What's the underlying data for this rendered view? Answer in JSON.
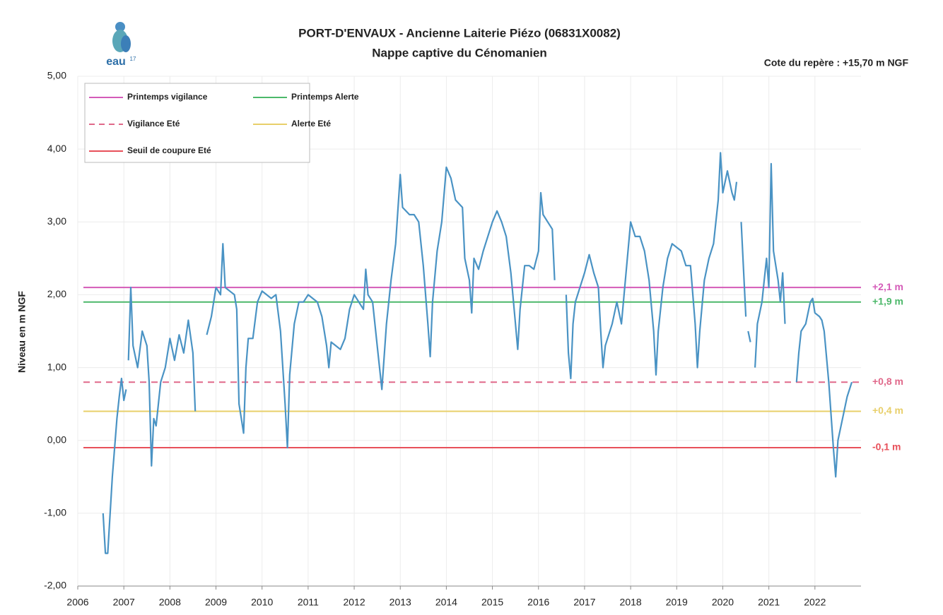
{
  "chart_data": {
    "type": "line",
    "title": "PORT-D'ENVAUX - Ancienne Laiterie Piézo (06831X0082)",
    "subtitle": "Nappe captive du Cénomanien",
    "annotation": "Cote du repère : +15,70 m NGF",
    "logo": {
      "text": "eau",
      "sup": "17"
    },
    "y_label": "Niveau en m NGF",
    "color": "#4a93c4",
    "grid": true,
    "legend": "top-left",
    "xlim": [
      2006,
      2023
    ],
    "xticks": [
      2006,
      2007,
      2008,
      2009,
      2010,
      2011,
      2012,
      2013,
      2014,
      2015,
      2016,
      2017,
      2018,
      2019,
      2020,
      2021,
      2022
    ],
    "ylim": [
      -2,
      5
    ],
    "yticks": [
      {
        "value": -2,
        "label": "-2,00"
      },
      {
        "value": -1,
        "label": "-1,00"
      },
      {
        "value": 0,
        "label": "0,00"
      },
      {
        "value": 1,
        "label": "1,00"
      },
      {
        "value": 2,
        "label": "2,00"
      },
      {
        "value": 3,
        "label": "3,00"
      },
      {
        "value": 4,
        "label": "4,00"
      },
      {
        "value": 5,
        "label": "5,00"
      }
    ],
    "thresholds": [
      {
        "name": "Printemps vigilance",
        "color": "#d45bb8",
        "dashed": false,
        "value": 2.1,
        "label": "+2,1 m"
      },
      {
        "name": "Printemps Alerte",
        "color": "#4cb86a",
        "dashed": false,
        "value": 1.9,
        "label": "+1,9 m"
      },
      {
        "name": "Vigilance Eté",
        "color": "#e0688a",
        "dashed": true,
        "value": 0.8,
        "label": "+0,8 m"
      },
      {
        "name": "Alerte Eté",
        "color": "#e8cf6a",
        "dashed": false,
        "value": 0.4,
        "label": "+0,4 m"
      },
      {
        "name": "Seuil de coupure Eté",
        "color": "#e8505a",
        "dashed": false,
        "value": -0.1,
        "label": "-0,1 m"
      }
    ],
    "x": [
      2006.55,
      2006.6,
      2006.65,
      2006.75,
      2006.85,
      2006.9,
      2006.95,
      2007.0,
      2007.05,
      null,
      2007.1,
      2007.15,
      2007.2,
      2007.3,
      2007.4,
      2007.5,
      2007.55,
      2007.6,
      2007.65,
      2007.7,
      2007.8,
      2007.9,
      2008.0,
      2008.1,
      2008.2,
      2008.3,
      2008.4,
      2008.5,
      2008.55,
      null,
      2008.8,
      2008.9,
      2009.0,
      2009.1,
      2009.15,
      2009.2,
      2009.3,
      2009.4,
      2009.45,
      2009.5,
      2009.55,
      2009.6,
      2009.65,
      2009.7,
      2009.8,
      2009.9,
      2010.0,
      2010.1,
      2010.2,
      2010.3,
      2010.4,
      2010.5,
      2010.55,
      2010.6,
      2010.7,
      2010.8,
      2010.9,
      2011.0,
      2011.1,
      2011.2,
      2011.3,
      2011.4,
      2011.45,
      2011.5,
      2011.6,
      2011.7,
      2011.8,
      2011.9,
      2012.0,
      2012.1,
      2012.2,
      2012.25,
      2012.3,
      2012.4,
      2012.5,
      2012.6,
      2012.7,
      2012.8,
      2012.9,
      2013.0,
      2013.05,
      2013.2,
      2013.3,
      2013.4,
      2013.5,
      2013.6,
      2013.65,
      2013.7,
      2013.8,
      2013.9,
      2014.0,
      2014.1,
      2014.2,
      2014.35,
      2014.4,
      2014.5,
      2014.55,
      2014.6,
      2014.7,
      2014.8,
      2014.9,
      2015.0,
      2015.1,
      2015.2,
      2015.3,
      2015.4,
      2015.5,
      2015.55,
      2015.6,
      2015.7,
      2015.8,
      2015.9,
      2016.0,
      2016.05,
      2016.1,
      2016.2,
      2016.3,
      2016.35,
      null,
      2016.6,
      2016.65,
      2016.7,
      2016.75,
      2016.8,
      2016.9,
      2017.0,
      2017.1,
      2017.2,
      2017.3,
      2017.35,
      2017.4,
      2017.45,
      2017.5,
      2017.6,
      2017.7,
      2017.8,
      2017.9,
      2018.0,
      2018.1,
      2018.2,
      2018.3,
      2018.4,
      2018.5,
      2018.55,
      2018.6,
      2018.7,
      2018.8,
      2018.9,
      2019.0,
      2019.1,
      2019.2,
      2019.3,
      2019.4,
      2019.45,
      2019.5,
      2019.6,
      2019.7,
      2019.8,
      2019.9,
      2019.95,
      2020.0,
      2020.1,
      2020.2,
      2020.25,
      2020.3,
      null,
      2020.4,
      2020.5,
      null,
      2020.55,
      2020.6,
      null,
      2020.7,
      2020.75,
      2020.85,
      2020.9,
      2020.95,
      2021.0,
      2021.05,
      2021.1,
      2021.2,
      2021.25,
      2021.3,
      2021.35,
      null,
      2021.6,
      2021.65,
      2021.7,
      2021.8,
      2021.9,
      2021.95,
      2022.0,
      2022.1,
      2022.15,
      2022.2,
      2022.3,
      2022.4,
      2022.45,
      2022.5,
      2022.6,
      2022.7,
      2022.8
    ],
    "values": [
      -1.0,
      -1.55,
      -1.55,
      -0.5,
      0.3,
      0.6,
      0.85,
      0.55,
      0.7,
      null,
      1.1,
      2.1,
      1.3,
      1.0,
      1.5,
      1.3,
      0.8,
      -0.35,
      0.3,
      0.2,
      0.8,
      1.0,
      1.4,
      1.1,
      1.45,
      1.2,
      1.65,
      1.2,
      0.4,
      null,
      1.45,
      1.7,
      2.1,
      2.0,
      2.7,
      2.1,
      2.05,
      2.0,
      1.8,
      0.5,
      0.3,
      0.1,
      1.0,
      1.4,
      1.4,
      1.9,
      2.05,
      2.0,
      1.95,
      2.0,
      1.5,
      0.5,
      -0.1,
      0.9,
      1.6,
      1.9,
      1.9,
      2.0,
      1.95,
      1.9,
      1.7,
      1.3,
      1.0,
      1.35,
      1.3,
      1.25,
      1.4,
      1.8,
      2.0,
      1.9,
      1.8,
      2.35,
      2.0,
      1.9,
      1.3,
      0.7,
      1.6,
      2.2,
      2.7,
      3.65,
      3.2,
      3.1,
      3.1,
      3.0,
      2.4,
      1.6,
      1.15,
      1.9,
      2.6,
      3.0,
      3.75,
      3.6,
      3.3,
      3.2,
      2.5,
      2.2,
      1.75,
      2.5,
      2.35,
      2.6,
      2.8,
      3.0,
      3.15,
      3.0,
      2.8,
      2.3,
      1.6,
      1.25,
      1.8,
      2.4,
      2.4,
      2.35,
      2.6,
      3.4,
      3.1,
      3.0,
      2.9,
      2.2,
      null,
      2.0,
      1.2,
      0.85,
      1.6,
      1.9,
      2.1,
      2.3,
      2.55,
      2.3,
      2.1,
      1.5,
      1.0,
      1.3,
      1.4,
      1.6,
      1.9,
      1.6,
      2.3,
      3.0,
      2.8,
      2.8,
      2.6,
      2.2,
      1.5,
      0.9,
      1.5,
      2.1,
      2.5,
      2.7,
      2.65,
      2.6,
      2.4,
      2.4,
      1.6,
      1.0,
      1.5,
      2.2,
      2.5,
      2.7,
      3.3,
      3.95,
      3.4,
      3.7,
      3.4,
      3.3,
      3.55,
      null,
      3.0,
      1.7,
      null,
      1.5,
      1.35,
      null,
      1.0,
      1.6,
      1.9,
      2.2,
      2.5,
      2.1,
      3.8,
      2.6,
      2.2,
      1.9,
      2.3,
      1.6,
      null,
      0.8,
      1.2,
      1.5,
      1.6,
      1.9,
      1.95,
      1.75,
      1.7,
      1.65,
      1.5,
      0.8,
      -0.1,
      -0.5,
      0.0,
      0.3,
      0.6,
      0.8
    ]
  }
}
